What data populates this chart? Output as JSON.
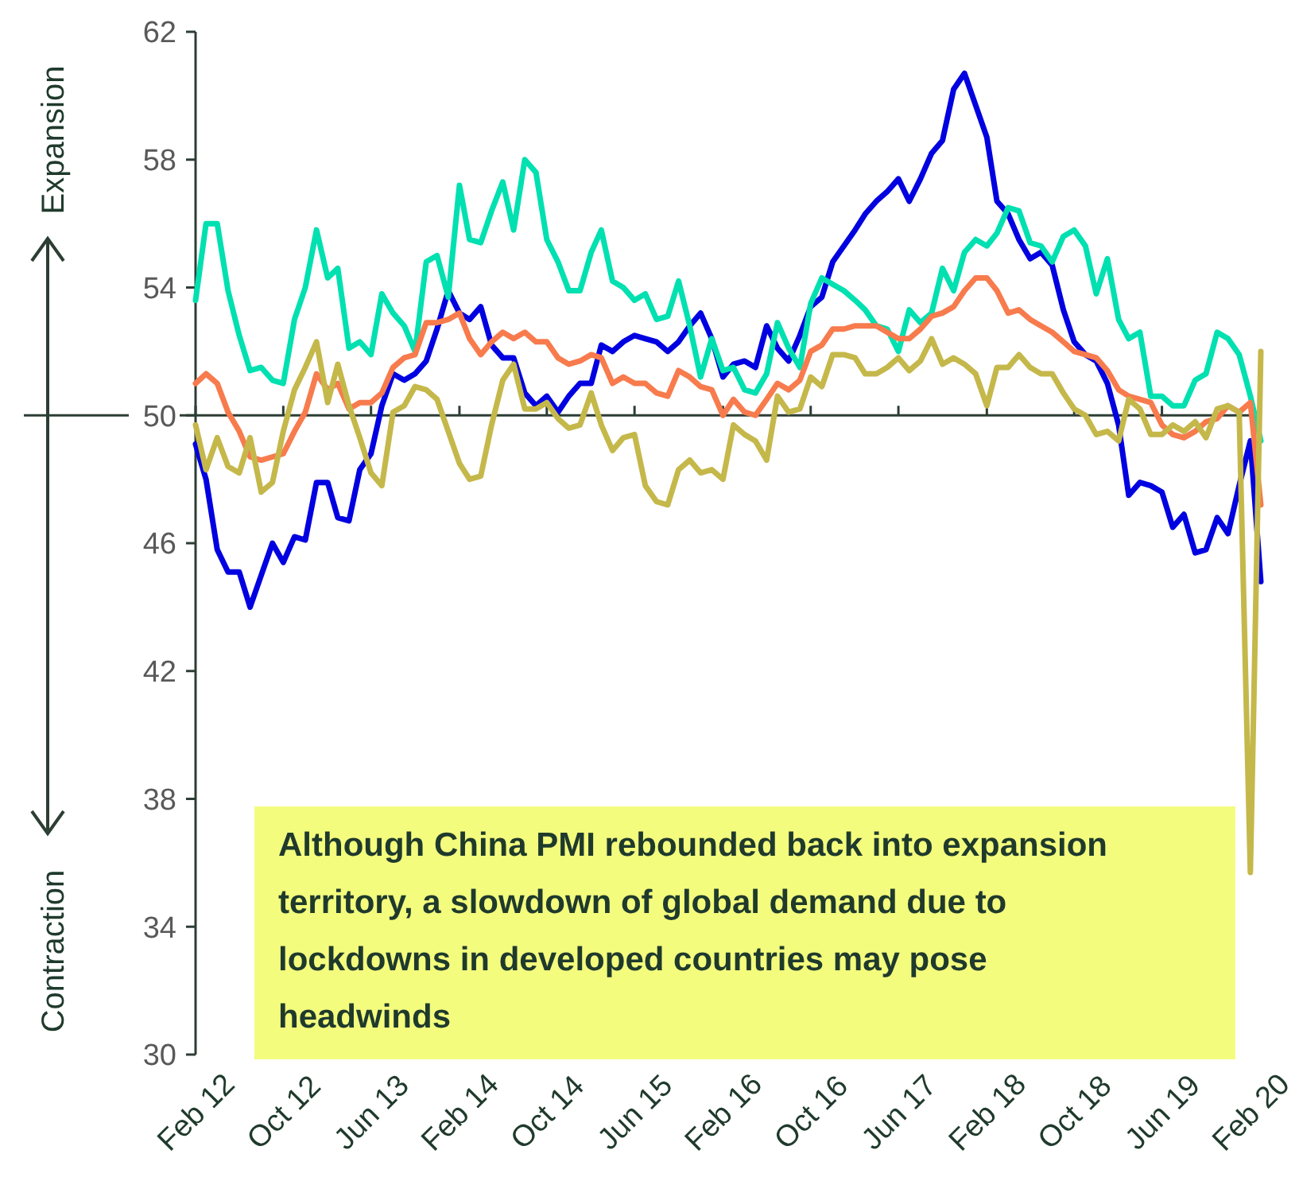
{
  "chart_data": {
    "type": "line",
    "x": [
      "2012-02",
      "2012-03",
      "2012-04",
      "2012-05",
      "2012-06",
      "2012-07",
      "2012-08",
      "2012-09",
      "2012-10",
      "2012-11",
      "2012-12",
      "2013-01",
      "2013-02",
      "2013-03",
      "2013-04",
      "2013-05",
      "2013-06",
      "2013-07",
      "2013-08",
      "2013-09",
      "2013-10",
      "2013-11",
      "2013-12",
      "2014-01",
      "2014-02",
      "2014-03",
      "2014-04",
      "2014-05",
      "2014-06",
      "2014-07",
      "2014-08",
      "2014-09",
      "2014-10",
      "2014-11",
      "2014-12",
      "2015-01",
      "2015-02",
      "2015-03",
      "2015-04",
      "2015-05",
      "2015-06",
      "2015-07",
      "2015-08",
      "2015-09",
      "2015-10",
      "2015-11",
      "2015-12",
      "2016-01",
      "2016-02",
      "2016-03",
      "2016-04",
      "2016-05",
      "2016-06",
      "2016-07",
      "2016-08",
      "2016-09",
      "2016-10",
      "2016-11",
      "2016-12",
      "2017-01",
      "2017-02",
      "2017-03",
      "2017-04",
      "2017-05",
      "2017-06",
      "2017-07",
      "2017-08",
      "2017-09",
      "2017-10",
      "2017-11",
      "2017-12",
      "2018-01",
      "2018-02",
      "2018-03",
      "2018-04",
      "2018-05",
      "2018-06",
      "2018-07",
      "2018-08",
      "2018-09",
      "2018-10",
      "2018-11",
      "2018-12",
      "2019-01",
      "2019-02",
      "2019-03",
      "2019-04",
      "2019-05",
      "2019-06",
      "2019-07",
      "2019-08",
      "2019-09",
      "2019-10",
      "2019-11",
      "2019-12",
      "2020-01",
      "2020-02",
      "2020-03"
    ],
    "series": [
      {
        "color": "#0000e0",
        "values": [
          49.1,
          48.0,
          45.8,
          45.1,
          45.1,
          44.0,
          45.0,
          46.0,
          45.4,
          46.2,
          46.1,
          47.9,
          47.9,
          46.8,
          46.7,
          48.3,
          48.8,
          50.3,
          51.3,
          51.1,
          51.3,
          51.7,
          52.7,
          53.9,
          53.2,
          53.0,
          53.4,
          52.2,
          51.8,
          51.8,
          50.7,
          50.3,
          50.6,
          50.1,
          50.6,
          51.0,
          51.0,
          52.2,
          52.0,
          52.3,
          52.5,
          52.4,
          52.3,
          52.0,
          52.3,
          52.8,
          53.2,
          52.4,
          51.2,
          51.6,
          51.7,
          51.5,
          52.8,
          52.1,
          51.7,
          52.5,
          53.4,
          53.7,
          54.8,
          55.3,
          55.8,
          56.3,
          56.7,
          57.0,
          57.4,
          56.7,
          57.4,
          58.2,
          58.6,
          60.2,
          60.7,
          59.7,
          58.7,
          56.7,
          56.3,
          55.5,
          54.9,
          55.1,
          54.7,
          53.3,
          52.3,
          51.9,
          51.7,
          51.0,
          49.7,
          47.5,
          47.9,
          47.8,
          47.6,
          46.5,
          46.9,
          45.7,
          45.8,
          46.8,
          46.3,
          47.8,
          49.2,
          44.8
        ]
      },
      {
        "color": "#00e0b0",
        "values": [
          53.6,
          56.0,
          56.0,
          53.9,
          52.5,
          51.4,
          51.5,
          51.1,
          51.0,
          53.0,
          54.0,
          55.8,
          54.3,
          54.6,
          52.1,
          52.3,
          51.9,
          53.8,
          53.2,
          52.8,
          52.0,
          54.8,
          55.0,
          53.7,
          57.2,
          55.5,
          55.4,
          56.4,
          57.3,
          55.8,
          58.0,
          57.6,
          55.5,
          54.8,
          53.9,
          53.9,
          55.1,
          55.8,
          54.2,
          54.0,
          53.6,
          53.8,
          53.0,
          53.1,
          54.2,
          52.8,
          51.2,
          52.4,
          51.4,
          51.5,
          50.8,
          50.7,
          51.3,
          52.9,
          52.1,
          51.5,
          53.5,
          54.3,
          54.1,
          53.9,
          53.6,
          53.3,
          52.8,
          52.7,
          52.0,
          53.3,
          52.9,
          53.2,
          54.6,
          53.9,
          55.1,
          55.5,
          55.3,
          55.7,
          56.5,
          56.4,
          55.4,
          55.3,
          54.8,
          55.6,
          55.8,
          55.3,
          53.8,
          54.9,
          53.0,
          52.4,
          52.6,
          50.6,
          50.6,
          50.3,
          50.3,
          51.1,
          51.3,
          52.6,
          52.4,
          51.9,
          50.6,
          49.2
        ]
      },
      {
        "color": "#f77b4d",
        "values": [
          51.0,
          51.3,
          51.0,
          50.1,
          49.5,
          48.7,
          48.6,
          48.7,
          48.8,
          49.5,
          50.1,
          51.3,
          50.8,
          51.0,
          50.2,
          50.4,
          50.4,
          50.7,
          51.5,
          51.8,
          51.9,
          52.9,
          52.9,
          53.0,
          53.2,
          52.4,
          51.9,
          52.3,
          52.6,
          52.4,
          52.6,
          52.3,
          52.3,
          51.8,
          51.6,
          51.7,
          51.9,
          51.8,
          51.0,
          51.2,
          51.0,
          51.0,
          50.7,
          50.6,
          51.4,
          51.2,
          50.9,
          50.8,
          50.0,
          50.5,
          50.1,
          50.0,
          50.5,
          51.0,
          50.8,
          51.1,
          52.0,
          52.2,
          52.7,
          52.7,
          52.8,
          52.8,
          52.8,
          52.6,
          52.4,
          52.4,
          52.7,
          53.1,
          53.2,
          53.4,
          53.9,
          54.3,
          54.3,
          53.9,
          53.2,
          53.3,
          53.0,
          52.8,
          52.6,
          52.3,
          52.0,
          51.9,
          51.8,
          51.4,
          50.8,
          50.6,
          50.5,
          50.4,
          49.7,
          49.4,
          49.3,
          49.5,
          49.8,
          49.9,
          50.3,
          50.1,
          50.4,
          47.2
        ]
      },
      {
        "color": "#c5b84b",
        "values": [
          49.7,
          48.3,
          49.3,
          48.4,
          48.2,
          49.3,
          47.6,
          47.9,
          49.5,
          50.8,
          51.5,
          52.3,
          50.4,
          51.6,
          50.3,
          49.3,
          48.2,
          47.8,
          50.1,
          50.3,
          50.9,
          50.8,
          50.5,
          49.5,
          48.5,
          48.0,
          48.1,
          49.7,
          51.1,
          51.6,
          50.2,
          50.2,
          50.4,
          49.9,
          49.6,
          49.7,
          50.7,
          49.7,
          48.9,
          49.3,
          49.4,
          47.8,
          47.3,
          47.2,
          48.3,
          48.6,
          48.2,
          48.3,
          48.0,
          49.7,
          49.4,
          49.2,
          48.6,
          50.6,
          50.1,
          50.2,
          51.2,
          50.9,
          51.9,
          51.9,
          51.8,
          51.3,
          51.3,
          51.5,
          51.8,
          51.4,
          51.7,
          52.4,
          51.6,
          51.8,
          51.6,
          51.3,
          50.3,
          51.5,
          51.5,
          51.9,
          51.5,
          51.3,
          51.3,
          50.7,
          50.2,
          50.0,
          49.4,
          49.5,
          49.2,
          50.5,
          50.2,
          49.4,
          49.4,
          49.7,
          49.5,
          49.8,
          49.3,
          50.2,
          50.3,
          50.1,
          35.7,
          52.0
        ]
      }
    ],
    "xlim": [
      "2012-02",
      "2020-03"
    ],
    "xticks": [
      {
        "value": "2012-02",
        "label": "Feb 12"
      },
      {
        "value": "2012-10",
        "label": "Oct 12"
      },
      {
        "value": "2013-06",
        "label": "Jun 13"
      },
      {
        "value": "2014-02",
        "label": "Feb 14"
      },
      {
        "value": "2014-10",
        "label": "Oct 14"
      },
      {
        "value": "2015-06",
        "label": "Jun 15"
      },
      {
        "value": "2016-02",
        "label": "Feb 16"
      },
      {
        "value": "2016-10",
        "label": "Oct 16"
      },
      {
        "value": "2017-06",
        "label": "Jun 17"
      },
      {
        "value": "2018-02",
        "label": "Feb 18"
      },
      {
        "value": "2018-10",
        "label": "Oct 18"
      },
      {
        "value": "2019-06",
        "label": "Jun 19"
      },
      {
        "value": "2020-02",
        "label": "Feb 20"
      }
    ],
    "ylim": [
      30,
      62
    ],
    "yticks": [
      30,
      34,
      38,
      42,
      46,
      50,
      54,
      58,
      62
    ],
    "ref_lines": [
      {
        "axis": "y",
        "value": 50,
        "color": "#2d3e34"
      }
    ],
    "annotations": [
      "Expansion",
      "Contraction",
      "Although China PMI rebounded back into expansion territory, a slowdown of global demand due to lockdowns in developed countries may pose headwinds"
    ]
  }
}
